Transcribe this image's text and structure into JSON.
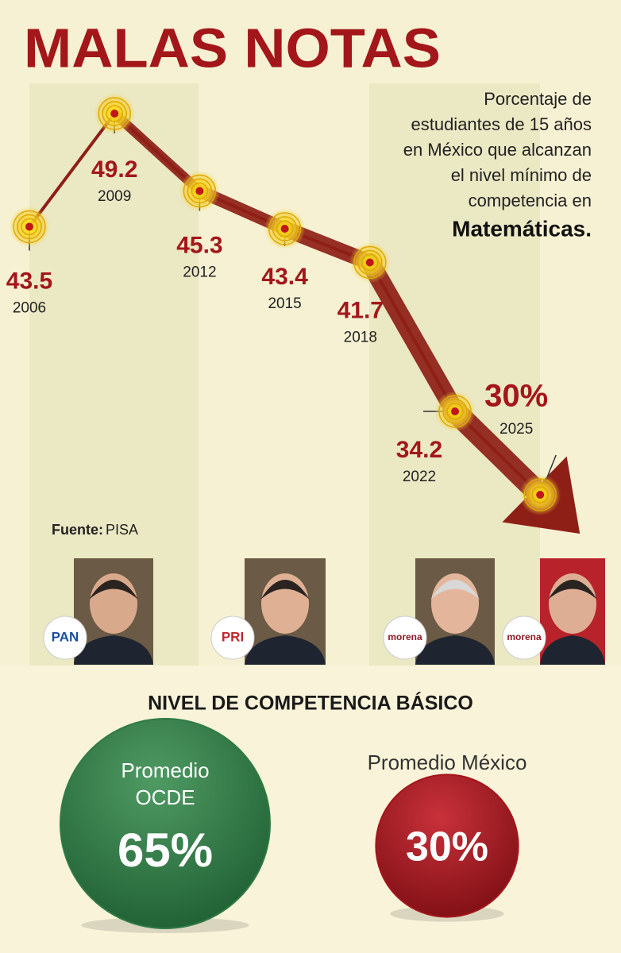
{
  "chart_data": [
    {
      "type": "line",
      "title": "MALAS NOTAS",
      "subtitle": [
        "Porcentaje de",
        "estudiantes de 15 años",
        "en México que alcanzan",
        "el nivel mínimo de",
        "competencia en"
      ],
      "subtitle_emphasis": "Matemáticas.",
      "source_label": "Fuente:",
      "source": "PISA",
      "categories": [
        "2006",
        "2009",
        "2012",
        "2015",
        "2018",
        "2022",
        "2025"
      ],
      "values": [
        43.5,
        49.2,
        45.3,
        43.4,
        41.7,
        34.2,
        30
      ],
      "value_labels": [
        "43.5",
        "49.2",
        "45.3",
        "43.4",
        "41.7",
        "34.2",
        "30%"
      ],
      "color": "#8e1f16",
      "label_color": "#a3161a",
      "parties": [
        "PAN",
        "PRI",
        "morena",
        "morena"
      ]
    },
    {
      "type": "circles",
      "title": "NIVEL DE COMPETENCIA BÁSICO",
      "categories": [
        "Promedio OCDE",
        "Promedio México"
      ],
      "values": [
        65,
        30
      ],
      "value_labels": [
        "65%",
        "30%"
      ],
      "colors": [
        "#2f7a45",
        "#a3161a"
      ]
    }
  ]
}
